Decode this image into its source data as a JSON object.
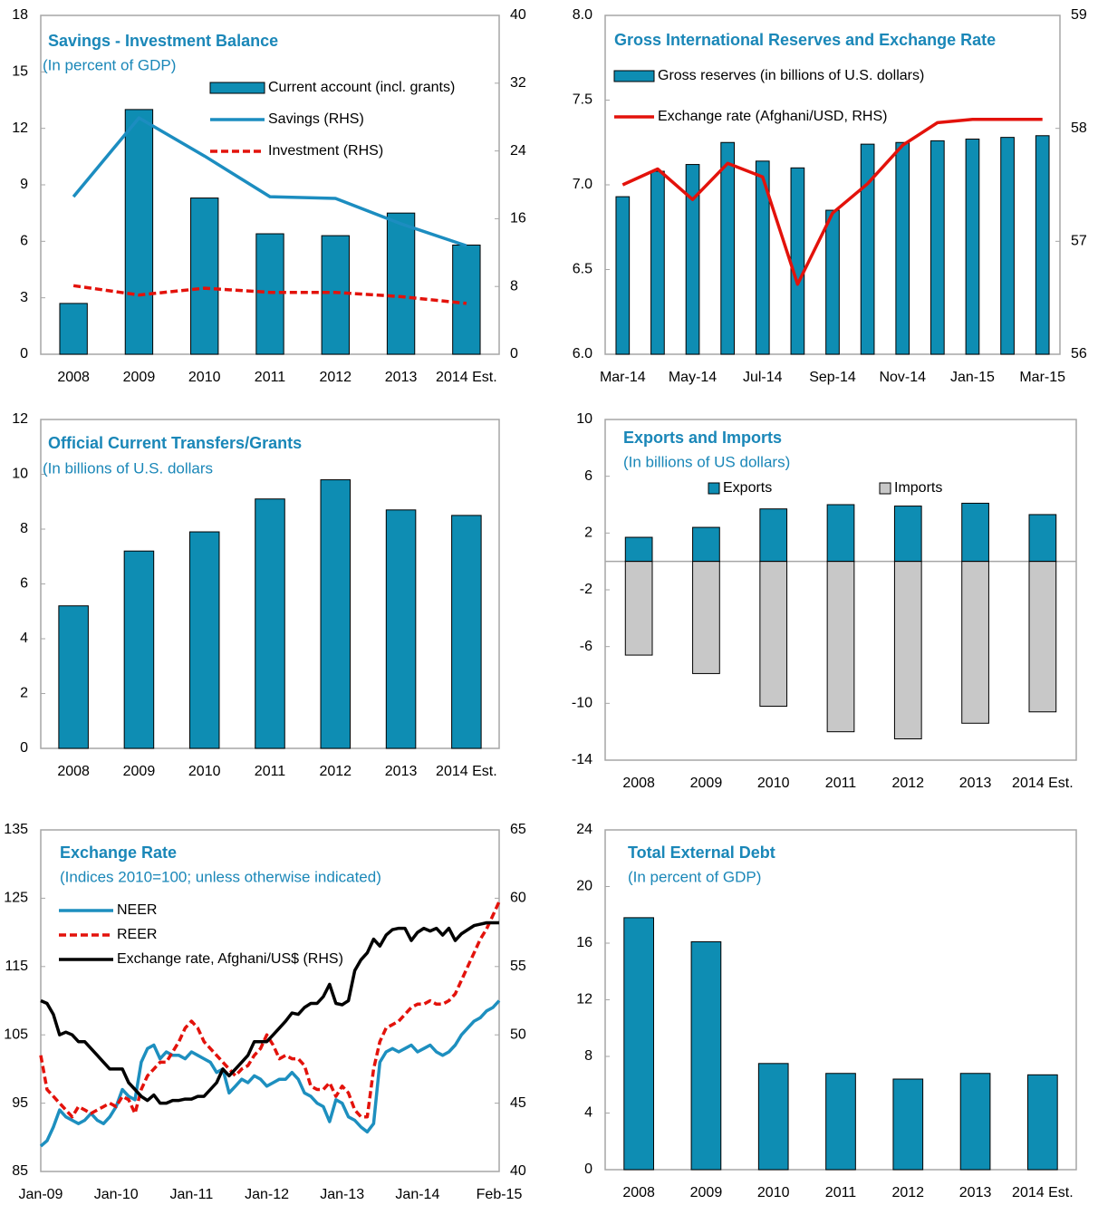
{
  "chart_data": [
    {
      "type": "bar",
      "title": "Savings - Investment Balance",
      "subtitle": "(In percent of GDP)",
      "categories": [
        "2008",
        "2009",
        "2010",
        "2011",
        "2012",
        "2013",
        "2014 Est."
      ],
      "ylim": [
        0,
        18
      ],
      "yticks": [
        0,
        3,
        6,
        9,
        12,
        15,
        18
      ],
      "y2lim": [
        0,
        40
      ],
      "y2ticks": [
        0,
        8,
        16,
        24,
        32,
        40
      ],
      "series": [
        {
          "name": "Current account (incl. grants)",
          "type": "bar",
          "color": "#0e8db3",
          "values": [
            2.7,
            13.0,
            8.3,
            6.4,
            6.3,
            7.5,
            5.8
          ]
        },
        {
          "name": "Savings (RHS)",
          "type": "line",
          "axis": "y2",
          "color": "#1c8dc0",
          "values": [
            18.6,
            27.9,
            23.4,
            18.6,
            18.4,
            15.4,
            12.8
          ]
        },
        {
          "name": "Investment (RHS)",
          "type": "line",
          "axis": "y2",
          "dash": true,
          "color": "#e3120b",
          "values": [
            8.1,
            7.0,
            7.8,
            7.3,
            7.3,
            6.8,
            6.0
          ]
        }
      ]
    },
    {
      "type": "bar",
      "title": "Gross International Reserves and Exchange Rate",
      "categories": [
        "Mar-14",
        null,
        "May-14",
        null,
        "Jul-14",
        null,
        "Sep-14",
        null,
        "Nov-14",
        null,
        "Jan-15",
        null,
        "Mar-15"
      ],
      "ylim": [
        6,
        8
      ],
      "yticks": [
        {
          "value": 6,
          "label": "6.0"
        },
        6.5,
        {
          "value": 7,
          "label": "7.0"
        },
        7.5,
        {
          "value": 8,
          "label": "8.0"
        }
      ],
      "y2lim": [
        56,
        59
      ],
      "y2ticks": [
        56,
        57,
        58,
        59
      ],
      "series": [
        {
          "name": "Gross reserves (in billions of U.S. dollars)",
          "type": "bar",
          "color": "#0e8db3",
          "values": [
            6.93,
            7.08,
            7.12,
            7.25,
            7.14,
            7.1,
            6.85,
            7.24,
            7.25,
            7.26,
            7.27,
            7.28,
            7.29
          ]
        },
        {
          "name": "Exchange rate (Afghani/USD, RHS)",
          "type": "line",
          "axis": "y2",
          "color": "#e3120b",
          "values": [
            57.5,
            57.64,
            57.37,
            57.69,
            57.57,
            56.62,
            57.25,
            57.51,
            57.85,
            58.05,
            58.08,
            58.08,
            58.08
          ]
        }
      ]
    },
    {
      "type": "bar",
      "title": "Official Current Transfers/Grants",
      "subtitle": "(In billions of U.S. dollars",
      "categories": [
        "2008",
        "2009",
        "2010",
        "2011",
        "2012",
        "2013",
        "2014 Est."
      ],
      "ylim": [
        0,
        12
      ],
      "yticks": [
        0,
        2,
        4,
        6,
        8,
        10,
        12
      ],
      "series": [
        {
          "type": "bar",
          "color": "#0e8db3",
          "values": [
            5.2,
            7.2,
            7.9,
            9.1,
            9.8,
            8.7,
            8.5
          ]
        }
      ]
    },
    {
      "type": "bar",
      "title": "Exports and Imports",
      "subtitle": "(In billions of US dollars)",
      "stacked": true,
      "categories": [
        "2008",
        "2009",
        "2010",
        "2011",
        "2012",
        "2013",
        "2014 Est."
      ],
      "ylim": [
        -14,
        10
      ],
      "yticks": [
        -14,
        -10,
        -6,
        -2,
        2,
        6,
        10
      ],
      "series": [
        {
          "name": "Exports",
          "type": "bar",
          "color": "#0e8db3",
          "values": [
            1.7,
            2.4,
            3.7,
            4.0,
            3.9,
            4.1,
            3.3
          ]
        },
        {
          "name": "Imports",
          "type": "bar",
          "color": "#c8c8c8",
          "values": [
            -6.6,
            -7.9,
            -10.2,
            -12.0,
            -12.5,
            -11.4,
            -10.6
          ]
        }
      ]
    },
    {
      "type": "line",
      "title": "Exchange Rate",
      "subtitle": "(Indices 2010=100; unless otherwise indicated)",
      "categories": [
        "Jan-09",
        null,
        null,
        null,
        null,
        null,
        null,
        null,
        null,
        null,
        null,
        null,
        "Jan-10",
        null,
        null,
        null,
        null,
        null,
        null,
        null,
        null,
        null,
        null,
        null,
        "Jan-11",
        null,
        null,
        null,
        null,
        null,
        null,
        null,
        null,
        null,
        null,
        null,
        "Jan-12",
        null,
        null,
        null,
        null,
        null,
        null,
        null,
        null,
        null,
        null,
        null,
        "Jan-13",
        null,
        null,
        null,
        null,
        null,
        null,
        null,
        null,
        null,
        null,
        null,
        "Jan-14",
        null,
        null,
        null,
        null,
        null,
        null,
        null,
        null,
        null,
        null,
        null,
        null,
        "Feb-15"
      ],
      "ylim": [
        85,
        135
      ],
      "yticks": [
        85,
        95,
        105,
        115,
        125,
        135
      ],
      "y2lim": [
        40,
        65
      ],
      "y2ticks": [
        40,
        45,
        50,
        55,
        60,
        65
      ],
      "series": [
        {
          "name": "NEER",
          "type": "line",
          "color": "#1d8fbf",
          "values": [
            88.7,
            89.5,
            91.5,
            94,
            93,
            92.5,
            92,
            92.5,
            93.5,
            92.5,
            92,
            93,
            94.5,
            97,
            96,
            95.5,
            101,
            103,
            103.5,
            101.5,
            102.5,
            102,
            102,
            101.5,
            102.5,
            102,
            101.5,
            101,
            99.5,
            100,
            96.5,
            97.5,
            98.5,
            98,
            99,
            98.5,
            97.5,
            98,
            98.5,
            98.5,
            99.5,
            98.5,
            96.5,
            96,
            95,
            94.5,
            92.3,
            95.5,
            95,
            93,
            92.5,
            91.5,
            90.8,
            92,
            101,
            102.5,
            103,
            102.5,
            103,
            103.5,
            102.5,
            103,
            103.5,
            102.5,
            102,
            102.5,
            103.5,
            105,
            106,
            107,
            107.5,
            108.5,
            109,
            110
          ]
        },
        {
          "name": "REER",
          "type": "line",
          "dash": true,
          "color": "#e3120b",
          "values": [
            102,
            97,
            96,
            95,
            94,
            93,
            94.5,
            94,
            93.5,
            94,
            94.5,
            95,
            94.5,
            96,
            95.5,
            93.5,
            97,
            99,
            100,
            101,
            101,
            102.5,
            104,
            106,
            107,
            106,
            104,
            103,
            102,
            101,
            100,
            99,
            100,
            100.5,
            102,
            103,
            105,
            103.5,
            101.5,
            102,
            101.5,
            101.5,
            100.5,
            97.5,
            97,
            97,
            98,
            96,
            97.5,
            96.5,
            94,
            93,
            93,
            100,
            104,
            106,
            106.5,
            107,
            108,
            109,
            109.5,
            109.5,
            110,
            109.5,
            109.5,
            110,
            111,
            113,
            115,
            117,
            119,
            120.5,
            122.5,
            124.5
          ]
        },
        {
          "name": "Exchange rate, Afghani/US$ (RHS)",
          "type": "line",
          "axis": "y2",
          "color": "#000000",
          "values": [
            52.5,
            52.3,
            51.5,
            50,
            50.2,
            50,
            49.5,
            49.5,
            49,
            48.5,
            48,
            47.5,
            47.5,
            47.5,
            46.5,
            46,
            45.5,
            45.2,
            45.6,
            45,
            45,
            45.2,
            45.2,
            45.3,
            45.3,
            45.5,
            45.5,
            46,
            46.5,
            47.5,
            47,
            47.5,
            48,
            48.5,
            49.5,
            49.5,
            49.5,
            50,
            50.5,
            51,
            51.6,
            51.5,
            52,
            52.3,
            52.3,
            52.8,
            53.7,
            52.3,
            52.2,
            52.5,
            54.7,
            55.5,
            56,
            57,
            56.5,
            57.3,
            57.7,
            57.8,
            57.8,
            56.9,
            57.5,
            57.8,
            57.6,
            57.8,
            57.3,
            57.8,
            56.9,
            57.4,
            57.7,
            58,
            58.1,
            58.2,
            58.2,
            58.2
          ]
        }
      ]
    },
    {
      "type": "bar",
      "title": "Total External Debt",
      "subtitle": "(In percent of GDP)",
      "categories": [
        "2008",
        "2009",
        "2010",
        "2011",
        "2012",
        "2013",
        "2014 Est."
      ],
      "ylim": [
        0,
        24
      ],
      "yticks": [
        0,
        4,
        8,
        12,
        16,
        20,
        24
      ],
      "series": [
        {
          "type": "bar",
          "color": "#0e8db3",
          "values": [
            17.8,
            16.1,
            7.5,
            6.8,
            6.4,
            6.8,
            6.7
          ]
        }
      ]
    }
  ]
}
